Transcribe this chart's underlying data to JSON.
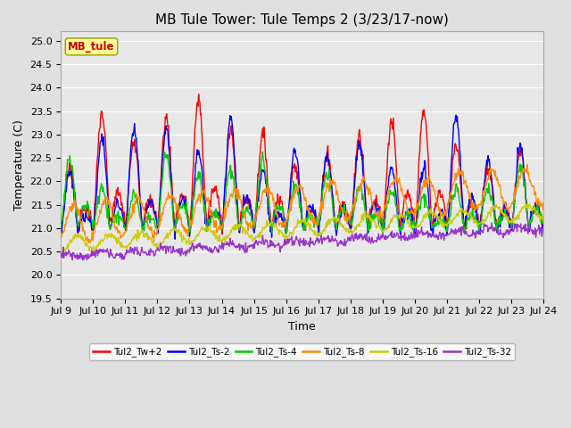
{
  "title": "MB Tule Tower: Tule Temps 2 (3/23/17-now)",
  "xlabel": "Time",
  "ylabel": "Temperature (C)",
  "ylim": [
    19.5,
    25.2
  ],
  "x_tick_labels": [
    "Jul 9",
    "Jul 10",
    "Jul 11",
    "Jul 12",
    "Jul 13",
    "Jul 14",
    "Jul 15",
    "Jul 16",
    "Jul 17",
    "Jul 18",
    "Jul 19",
    "Jul 20",
    "Jul 21",
    "Jul 22",
    "Jul 23",
    "Jul 24"
  ],
  "legend_label": "MB_tule",
  "series_labels": [
    "Tul2_Tw+2",
    "Tul2_Ts-2",
    "Tul2_Ts-4",
    "Tul2_Ts-8",
    "Tul2_Ts-16",
    "Tul2_Ts-32"
  ],
  "series_colors": [
    "#ff0000",
    "#0000ff",
    "#00cc00",
    "#ff8c00",
    "#cccc00",
    "#9933cc"
  ],
  "background_color": "#e0e0e0",
  "plot_bg_color": "#e8e8e8",
  "grid_color": "#ffffff",
  "title_fontsize": 11,
  "axis_fontsize": 9,
  "tick_fontsize": 8,
  "legend_box_color": "#ffff99",
  "legend_box_edge": "#999900",
  "legend_box_text": "#cc0000"
}
